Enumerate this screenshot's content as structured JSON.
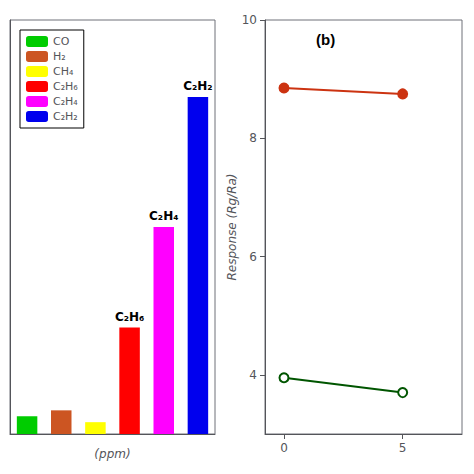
{
  "chart_data": [
    {
      "type": "bar",
      "categories": [
        "CO",
        "H₂",
        "CH₄",
        "C₂H₆",
        "C₂H₄",
        "C₂H₂"
      ],
      "values": [
        0.3,
        0.4,
        0.2,
        1.8,
        3.5,
        5.7
      ],
      "colors": [
        "#00cc00",
        "#cc5522",
        "#ffff00",
        "#ff0000",
        "#ff00ff",
        "#0000ee"
      ],
      "annotations": [
        "C₂H₆",
        "C₂H₄",
        "C₂H₂"
      ],
      "xlabel": "(ppm)",
      "ylim": [
        0,
        7
      ],
      "tick_labels": false,
      "legend": "upper left"
    },
    {
      "type": "line",
      "series": [
        {
          "color": "#cc3311",
          "x": [
            0,
            5
          ],
          "values": [
            8.85,
            8.75
          ],
          "marker": "circle"
        },
        {
          "color": "#005500",
          "x": [
            0,
            5
          ],
          "values": [
            3.95,
            3.7
          ],
          "marker": "open_circle"
        }
      ],
      "annotations": [
        "(b)"
      ],
      "ylabel": "Response (Rg/Ra)",
      "ylim": [
        3,
        10
      ],
      "yticks": [
        4,
        6,
        8,
        10
      ],
      "xlim": [
        -0.8,
        7.5
      ],
      "xticks": [
        0,
        5
      ]
    }
  ]
}
